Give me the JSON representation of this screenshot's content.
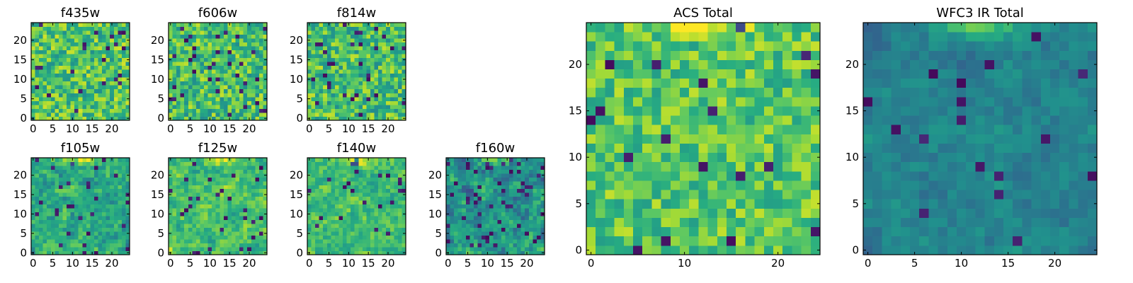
{
  "chart_data": [
    {
      "type": "heatmap",
      "title": "f435w",
      "grid": [
        25,
        25
      ],
      "colormap": "viridis",
      "seed": 11,
      "base": 0.72,
      "spread": 0.22,
      "smooth": 0,
      "dark_frac": 0.04,
      "xticks": [
        "0",
        "5",
        "10",
        "15",
        "20"
      ],
      "yticks": [
        "0",
        "5",
        "10",
        "15",
        "20"
      ],
      "xlim": [
        0,
        25
      ],
      "ylim": [
        0,
        25
      ]
    },
    {
      "type": "heatmap",
      "title": "f606w",
      "grid": [
        25,
        25
      ],
      "colormap": "viridis",
      "seed": 23,
      "base": 0.7,
      "spread": 0.22,
      "smooth": 0,
      "dark_frac": 0.05,
      "xticks": [
        "0",
        "5",
        "10",
        "15",
        "20"
      ],
      "yticks": [
        "0",
        "5",
        "10",
        "15",
        "20"
      ],
      "xlim": [
        0,
        25
      ],
      "ylim": [
        0,
        25
      ]
    },
    {
      "type": "heatmap",
      "title": "f814w",
      "grid": [
        25,
        25
      ],
      "colormap": "viridis",
      "seed": 37,
      "base": 0.7,
      "spread": 0.22,
      "smooth": 0,
      "dark_frac": 0.05,
      "xticks": [
        "0",
        "5",
        "10",
        "15",
        "20"
      ],
      "yticks": [
        "0",
        "5",
        "10",
        "15",
        "20"
      ],
      "xlim": [
        0,
        25
      ],
      "ylim": [
        0,
        25
      ]
    },
    {
      "type": "heatmap",
      "title": "f105w",
      "grid": [
        25,
        25
      ],
      "colormap": "viridis",
      "seed": 41,
      "base": 0.62,
      "spread": 0.25,
      "smooth": 1,
      "dark_frac": 0.05,
      "bright_top": true,
      "xticks": [
        "0",
        "5",
        "10",
        "15",
        "20"
      ],
      "yticks": [
        "0",
        "5",
        "10",
        "15",
        "20"
      ],
      "xlim": [
        0,
        25
      ],
      "ylim": [
        0,
        25
      ]
    },
    {
      "type": "heatmap",
      "title": "f125w",
      "grid": [
        25,
        25
      ],
      "colormap": "viridis",
      "seed": 53,
      "base": 0.7,
      "spread": 0.22,
      "smooth": 1,
      "dark_frac": 0.04,
      "bright_top": true,
      "xticks": [
        "0",
        "5",
        "10",
        "15",
        "20"
      ],
      "yticks": [
        "0",
        "5",
        "10",
        "15",
        "20"
      ],
      "xlim": [
        0,
        25
      ],
      "ylim": [
        0,
        25
      ]
    },
    {
      "type": "heatmap",
      "title": "f140w",
      "grid": [
        25,
        25
      ],
      "colormap": "viridis",
      "seed": 67,
      "base": 0.68,
      "spread": 0.22,
      "smooth": 1,
      "dark_frac": 0.03,
      "bright_top": true,
      "xticks": [
        "0",
        "5",
        "10",
        "15",
        "20"
      ],
      "yticks": [
        "0",
        "5",
        "10",
        "15",
        "20"
      ],
      "xlim": [
        0,
        25
      ],
      "ylim": [
        0,
        25
      ]
    },
    {
      "type": "heatmap",
      "title": "f160w",
      "grid": [
        25,
        25
      ],
      "colormap": "viridis",
      "seed": 79,
      "base": 0.52,
      "spread": 0.28,
      "smooth": 1,
      "dark_frac": 0.09,
      "bright_top": true,
      "xticks": [
        "0",
        "5",
        "10",
        "15",
        "20"
      ],
      "yticks": [
        "0",
        "5",
        "10",
        "15",
        "20"
      ],
      "xlim": [
        0,
        25
      ],
      "ylim": [
        0,
        25
      ]
    },
    {
      "type": "heatmap",
      "title": "ACS Total",
      "grid": [
        25,
        25
      ],
      "colormap": "viridis",
      "seed": 97,
      "base": 0.74,
      "spread": 0.18,
      "smooth": 0,
      "dark_frac": 0.025,
      "bright_top": true,
      "xticks": [
        "0",
        "10",
        "20"
      ],
      "yticks": [
        "0",
        "5",
        "10",
        "15",
        "20"
      ],
      "xlim": [
        0,
        25
      ],
      "ylim": [
        0,
        25
      ]
    },
    {
      "type": "heatmap",
      "title": "WFC3 IR Total",
      "grid": [
        25,
        25
      ],
      "colormap": "viridis",
      "seed": 113,
      "base": 0.45,
      "spread": 0.14,
      "smooth": 2,
      "dark_frac": 0.035,
      "bright_top": true,
      "xticks": [
        "0",
        "5",
        "10",
        "15",
        "20"
      ],
      "yticks": [
        "0",
        "5",
        "10",
        "15",
        "20"
      ],
      "xlim": [
        0,
        25
      ],
      "ylim": [
        0,
        25
      ]
    }
  ]
}
